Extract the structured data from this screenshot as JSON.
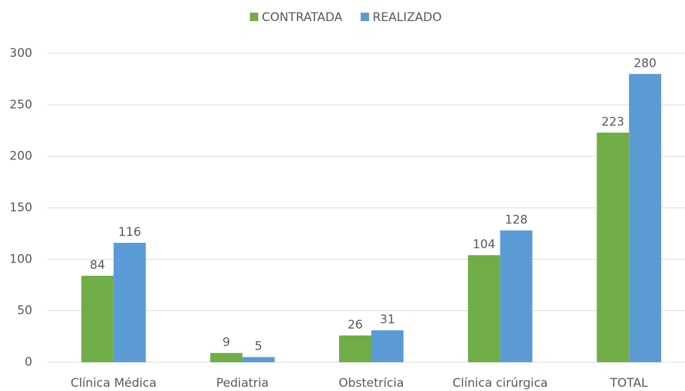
{
  "chart_data": {
    "type": "bar",
    "categories": [
      "Clínica Médica",
      "Pediatria",
      "Obstetrícia",
      "Clínica cirúrgica",
      "TOTAL"
    ],
    "series": [
      {
        "name": "CONTRATADA",
        "color": "#70ad47",
        "values": [
          84,
          9,
          26,
          104,
          223
        ]
      },
      {
        "name": "REALIZADO",
        "color": "#5b9bd5",
        "values": [
          116,
          5,
          31,
          128,
          280
        ]
      }
    ],
    "ylim": [
      0,
      300
    ],
    "yticks": [
      0,
      50,
      100,
      150,
      200,
      250,
      300
    ],
    "grid": true,
    "legend": "top"
  }
}
